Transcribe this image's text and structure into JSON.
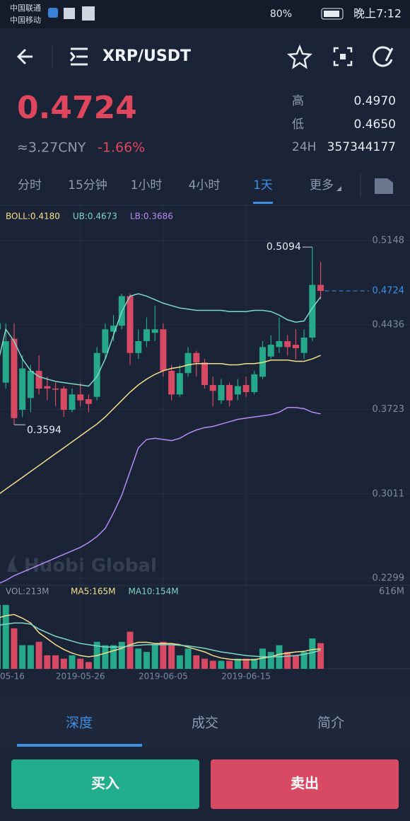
{
  "status_bar": {
    "carrier1": "中国联通",
    "carrier2": "中国移动",
    "battery": "80%",
    "time": "晚上7:12"
  },
  "header": {
    "pair": "XRP/USDT"
  },
  "ticker": {
    "price": "0.4724",
    "cny": "≈3.27CNY",
    "change": "-1.66%",
    "high_label": "高",
    "high": "0.4970",
    "low_label": "低",
    "low": "0.4650",
    "vol_label": "24H",
    "vol": "357344177"
  },
  "tabs": [
    "分时",
    "15分钟",
    "1小时",
    "4小时",
    "1天",
    "更多"
  ],
  "watermark": "Huobi Global",
  "chart_data": {
    "type": "candlestick",
    "categories": [
      "05-16",
      null,
      null,
      null,
      null,
      null,
      null,
      null,
      null,
      null,
      "2019-05-26",
      null,
      null,
      null,
      null,
      null,
      null,
      null,
      null,
      null,
      "2019-06-05",
      null,
      null,
      null,
      null,
      null,
      null,
      null,
      null,
      null,
      "2019-06-15",
      null,
      null,
      null,
      null,
      null,
      null,
      null,
      null,
      null
    ],
    "open": [
      0.44,
      0.395,
      0.432,
      0.372,
      0.382,
      0.405,
      0.392,
      0.39,
      0.39,
      0.372,
      0.385,
      0.381,
      0.383,
      0.42,
      0.438,
      0.443,
      0.468,
      0.42,
      0.43,
      0.437,
      0.44,
      0.405,
      0.385,
      0.403,
      0.42,
      0.412,
      0.393,
      0.38,
      0.393,
      0.385,
      0.393,
      0.387,
      0.4,
      0.417,
      0.425,
      0.43,
      0.427,
      0.42,
      0.433,
      0.4775
    ],
    "high": [
      0.46,
      0.445,
      0.445,
      0.418,
      0.41,
      0.418,
      0.4,
      0.395,
      0.392,
      0.39,
      0.395,
      0.385,
      0.425,
      0.445,
      0.452,
      0.47,
      0.47,
      0.44,
      0.45,
      0.46,
      0.445,
      0.41,
      0.41,
      0.425,
      0.422,
      0.415,
      0.4,
      0.398,
      0.395,
      0.398,
      0.4,
      0.405,
      0.43,
      0.435,
      0.45,
      0.435,
      0.44,
      0.44,
      0.5094,
      0.497
    ],
    "low": [
      0.43,
      0.39,
      0.3594,
      0.366,
      0.37,
      0.385,
      0.38,
      0.375,
      0.366,
      0.37,
      0.375,
      0.37,
      0.38,
      0.415,
      0.43,
      0.44,
      0.41,
      0.415,
      0.425,
      0.43,
      0.4,
      0.38,
      0.383,
      0.4,
      0.4,
      0.39,
      0.375,
      0.377,
      0.375,
      0.38,
      0.383,
      0.385,
      0.398,
      0.415,
      0.42,
      0.418,
      0.415,
      0.415,
      0.43,
      0.465
    ],
    "close": [
      0.445,
      0.43,
      0.365,
      0.407,
      0.405,
      0.39,
      0.39,
      0.389,
      0.372,
      0.385,
      0.38,
      0.377,
      0.42,
      0.44,
      0.443,
      0.468,
      0.42,
      0.43,
      0.44,
      0.44,
      0.405,
      0.385,
      0.403,
      0.42,
      0.412,
      0.393,
      0.388,
      0.393,
      0.38,
      0.392,
      0.387,
      0.402,
      0.425,
      0.427,
      0.43,
      0.425,
      0.424,
      0.433,
      0.4775,
      0.4724
    ],
    "up_color": "#26a98a",
    "down_color": "#d84a63",
    "series": [
      {
        "name": "BOLL:0.4180",
        "color": "#f2e18c",
        "values": [
          0.3,
          0.305,
          0.31,
          0.315,
          0.32,
          0.325,
          0.33,
          0.335,
          0.34,
          0.345,
          0.35,
          0.355,
          0.36,
          0.366,
          0.373,
          0.38,
          0.387,
          0.393,
          0.398,
          0.402,
          0.405,
          0.407,
          0.408,
          0.41,
          0.411,
          0.411,
          0.411,
          0.411,
          0.41,
          0.41,
          0.411,
          0.411,
          0.412,
          0.414,
          0.414,
          0.414,
          0.413,
          0.413,
          0.415,
          0.418
        ]
      },
      {
        "name": "UB:0.4673",
        "color": "#7fd8c4",
        "values": [
          0.41,
          0.44,
          0.43,
          0.415,
          0.405,
          0.4,
          0.398,
          0.396,
          0.395,
          0.394,
          0.393,
          0.392,
          0.4,
          0.415,
          0.435,
          0.455,
          0.468,
          0.47,
          0.468,
          0.465,
          0.462,
          0.46,
          0.458,
          0.457,
          0.456,
          0.456,
          0.456,
          0.456,
          0.455,
          0.455,
          0.455,
          0.456,
          0.456,
          0.455,
          0.452,
          0.448,
          0.446,
          0.447,
          0.458,
          0.4673
        ]
      },
      {
        "name": "LB:0.3686",
        "color": "#b58cf2",
        "values": [
          0.225,
          0.228,
          0.232,
          0.235,
          0.238,
          0.241,
          0.244,
          0.247,
          0.25,
          0.253,
          0.256,
          0.26,
          0.265,
          0.272,
          0.285,
          0.3,
          0.32,
          0.34,
          0.347,
          0.348,
          0.347,
          0.346,
          0.348,
          0.352,
          0.355,
          0.357,
          0.358,
          0.36,
          0.362,
          0.364,
          0.365,
          0.366,
          0.367,
          0.368,
          0.37,
          0.374,
          0.374,
          0.373,
          0.37,
          0.3686
        ]
      }
    ],
    "ylim": [
      0.2239,
      0.5447
    ],
    "yticks": [
      0.5148,
      0.4436,
      0.3723,
      0.3011,
      0.2299
    ],
    "grid": true,
    "last_price": 0.4724,
    "high_marker": 0.5094,
    "low_marker": 0.3594,
    "volume": {
      "label": "VOL:213M",
      "values": [
        530,
        530,
        336,
        196,
        196,
        224,
        112,
        112,
        84,
        112,
        84,
        56,
        224,
        196,
        196,
        224,
        308,
        168,
        140,
        196,
        224,
        196,
        112,
        168,
        112,
        84,
        67,
        67,
        67,
        84,
        84,
        84,
        168,
        140,
        196,
        140,
        112,
        140,
        252,
        213
      ],
      "ylim": [
        0,
        616
      ],
      "yticks": [
        {
          "value": 616,
          "label": "616M"
        }
      ],
      "series": [
        {
          "name": "MA5:165M",
          "color": "#f2e18c",
          "values": [
            420,
            440,
            450,
            420,
            380,
            300,
            250,
            200,
            160,
            130,
            110,
            100,
            110,
            130,
            150,
            170,
            200,
            220,
            220,
            210,
            210,
            210,
            200,
            180,
            160,
            140,
            110,
            90,
            80,
            75,
            75,
            75,
            90,
            100,
            120,
            130,
            140,
            145,
            160,
            165
          ]
        },
        {
          "name": "MA10:154M",
          "color": "#7fd8c4",
          "values": [
            360,
            370,
            380,
            380,
            370,
            330,
            300,
            270,
            250,
            230,
            210,
            200,
            190,
            180,
            180,
            180,
            190,
            195,
            200,
            200,
            200,
            200,
            195,
            190,
            180,
            170,
            155,
            140,
            130,
            120,
            110,
            105,
            100,
            100,
            100,
            105,
            110,
            120,
            135,
            154
          ]
        }
      ]
    }
  },
  "bottom_tabs": [
    "深度",
    "成交",
    "简介"
  ],
  "buttons": {
    "buy": "买入",
    "sell": "卖出"
  }
}
